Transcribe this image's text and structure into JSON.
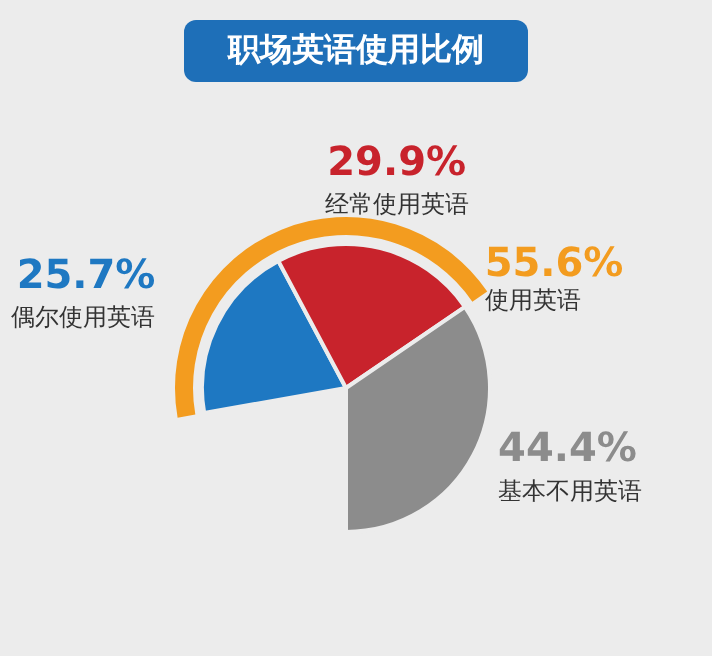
{
  "chart_data": {
    "type": "pie",
    "title": "职场英语使用比例",
    "categories": [
      "偶尔使用英语",
      "经常使用英语",
      "基本不用英语"
    ],
    "values": [
      25.7,
      29.9,
      44.4
    ],
    "colors": [
      "#1e78c2",
      "#c8232c",
      "#8c8c8c"
    ],
    "value_labels": [
      "25.7%",
      "29.9%",
      "44.4%"
    ],
    "annotations": [
      "55.6%",
      "使用英语"
    ],
    "legend": false
  }
}
